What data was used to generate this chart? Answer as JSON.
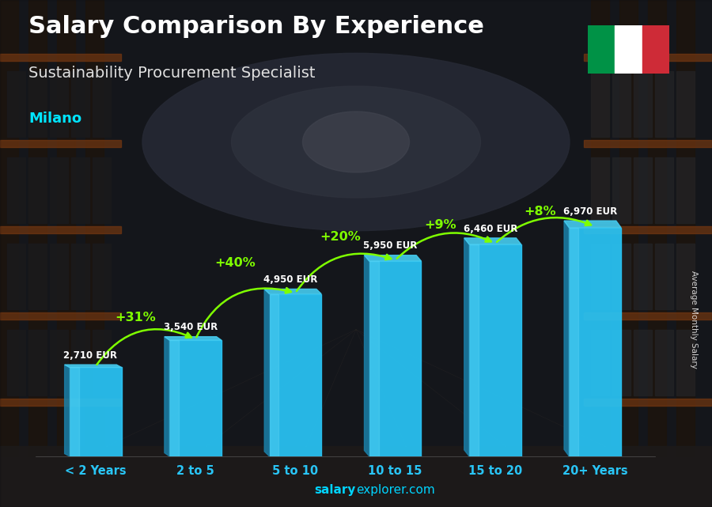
{
  "title": "Salary Comparison By Experience",
  "subtitle": "Sustainability Procurement Specialist",
  "city": "Milano",
  "categories": [
    "< 2 Years",
    "2 to 5",
    "5 to 10",
    "10 to 15",
    "15 to 20",
    "20+ Years"
  ],
  "values": [
    2710,
    3540,
    4950,
    5950,
    6460,
    6970
  ],
  "pct_labels": [
    "+31%",
    "+40%",
    "+20%",
    "+9%",
    "+8%"
  ],
  "eur_labels": [
    "2,710 EUR",
    "3,540 EUR",
    "4,950 EUR",
    "5,950 EUR",
    "6,460 EUR",
    "6,970 EUR"
  ],
  "bar_color": "#29c5f6",
  "pct_color": "#7fff00",
  "ylabel": "Average Monthly Salary",
  "watermark_bold": "salary",
  "watermark_normal": "explorer.com",
  "title_color": "#ffffff",
  "subtitle_color": "#e0e0e0",
  "city_color": "#00e5ff",
  "ylim": [
    0,
    8500
  ],
  "flag_green": "#009246",
  "flag_white": "#ffffff",
  "flag_red": "#ce2b37",
  "xtick_color": "#29c5f6"
}
